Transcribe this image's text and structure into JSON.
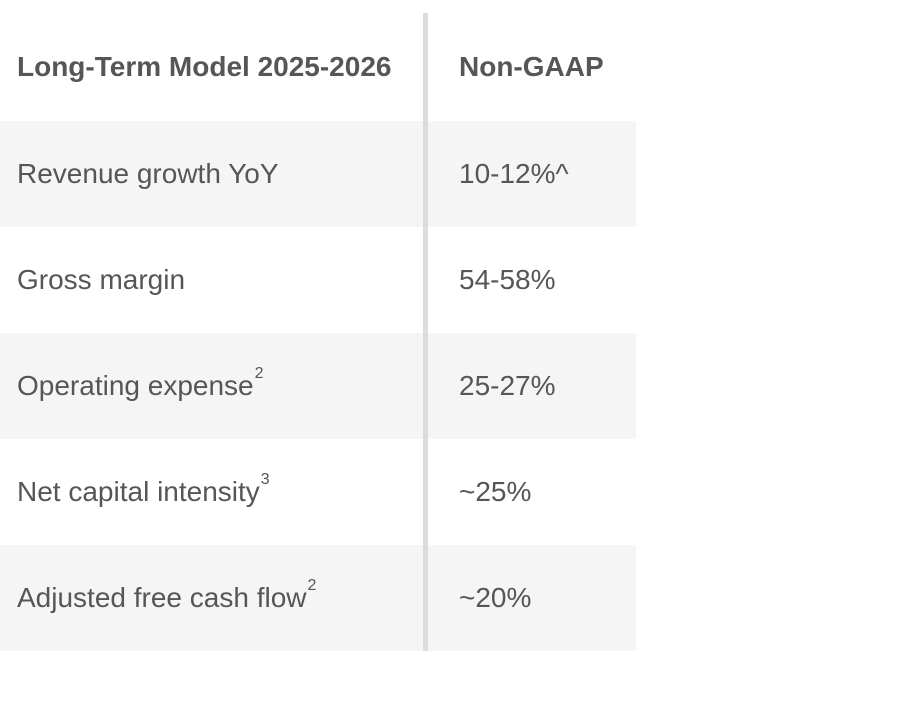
{
  "table": {
    "header": {
      "col1": "Long-Term Model 2025-2026",
      "col2": "Non-GAAP"
    },
    "rows": [
      {
        "label": "Revenue growth YoY",
        "sup": "",
        "value": "10-12%^"
      },
      {
        "label": "Gross margin",
        "sup": "",
        "value": "54-58%"
      },
      {
        "label": "Operating expense",
        "sup": "2",
        "value": "25-27%"
      },
      {
        "label": "Net capital intensity",
        "sup": "3",
        "value": "~25%"
      },
      {
        "label": "Adjusted free cash flow",
        "sup": "2",
        "value": "~20%"
      }
    ],
    "colors": {
      "text": "#54565a",
      "shaded_row_bg": "#f5f5f5",
      "divider": "#dcdcdc",
      "background": "#ffffff"
    }
  },
  "chart_data": {
    "type": "table",
    "title": "Long-Term Model 2025-2026",
    "columns": [
      "Long-Term Model 2025-2026",
      "Non-GAAP"
    ],
    "rows": [
      [
        "Revenue growth YoY",
        "10-12%^"
      ],
      [
        "Gross margin",
        "54-58%"
      ],
      [
        "Operating expense [2]",
        "25-27%"
      ],
      [
        "Net capital intensity [3]",
        "~25%"
      ],
      [
        "Adjusted free cash flow [2]",
        "~20%"
      ]
    ],
    "footnote_markers": {
      "Operating expense": "2",
      "Net capital intensity": "3",
      "Adjusted free cash flow": "2"
    }
  }
}
